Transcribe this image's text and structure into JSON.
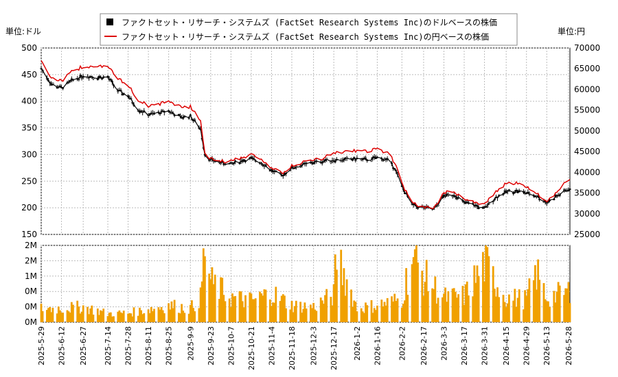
{
  "chart_data": {
    "type": "line",
    "legend": {
      "placement": "top-center",
      "items": [
        {
          "name": "ファクトセット・リサーチ・システムズ (FactSet Research Systems Inc)のドルベースの株価",
          "color": "#000000",
          "marker": "square"
        },
        {
          "name": "ファクトセット・リサーチ・システムズ (FactSet Research Systems Inc)の円ベースの株価",
          "color": "#dd0000",
          "marker": "line"
        }
      ]
    },
    "price_panel": {
      "left_axis_label": "単位:ドル",
      "right_axis_label": "単位:円",
      "left_ylim": [
        150,
        500
      ],
      "left_ticks": [
        "150",
        "200",
        "250",
        "300",
        "350",
        "400",
        "450",
        "500"
      ],
      "right_ylim": [
        25000,
        70000
      ],
      "right_ticks": [
        "25000",
        "30000",
        "35000",
        "40000",
        "45000",
        "50000",
        "55000",
        "60000",
        "65000",
        "70000"
      ],
      "grid": true
    },
    "volume_panel": {
      "ylim": [
        0,
        2.5
      ],
      "tick_values": [
        0,
        0.5,
        1,
        1.5,
        2,
        2.5
      ],
      "tick_labels": [
        "0M",
        "0M",
        "0M",
        "1M",
        "2M",
        "2M"
      ],
      "bar_color": "#f0a000",
      "grid": true
    },
    "x_axis": {
      "start": "2025-05-29",
      "end": "2026-05-29",
      "tick_labels": [
        "2025-5-29",
        "2025-6-12",
        "2025-6-27",
        "2025-7-14",
        "2025-7-28",
        "2025-8-11",
        "2025-8-25",
        "2025-9-9",
        "2025-9-23",
        "2025-10-7",
        "2025-10-21",
        "2025-11-4",
        "2025-11-18",
        "2025-12-3",
        "2025-12-17",
        "2026-1-2",
        "2026-1-16",
        "2026-2-2",
        "2026-2-17",
        "2026-3-3",
        "2026-3-17",
        "2026-3-31",
        "2026-4-15",
        "2026-4-29",
        "2026-5-13",
        "2026-5-28"
      ]
    },
    "usd_series": {
      "name": "ドルベース",
      "dates": [
        "2025-05-29",
        "2025-06-05",
        "2025-06-12",
        "2025-06-20",
        "2025-06-27",
        "2025-07-07",
        "2025-07-14",
        "2025-07-21",
        "2025-07-28",
        "2025-08-04",
        "2025-08-11",
        "2025-08-18",
        "2025-08-25",
        "2025-09-02",
        "2025-09-09",
        "2025-09-16",
        "2025-09-19",
        "2025-09-23",
        "2025-09-30",
        "2025-10-07",
        "2025-10-14",
        "2025-10-21",
        "2025-10-28",
        "2025-11-04",
        "2025-11-11",
        "2025-11-18",
        "2025-11-25",
        "2025-12-03",
        "2025-12-10",
        "2025-12-17",
        "2025-12-24",
        "2026-01-02",
        "2026-01-09",
        "2026-01-16",
        "2026-01-23",
        "2026-01-28",
        "2026-02-02",
        "2026-02-09",
        "2026-02-17",
        "2026-02-24",
        "2026-03-03",
        "2026-03-10",
        "2026-03-17",
        "2026-03-24",
        "2026-03-31",
        "2026-04-07",
        "2026-04-15",
        "2026-04-22",
        "2026-04-29",
        "2026-05-06",
        "2026-05-13",
        "2026-05-20",
        "2026-05-28"
      ],
      "values": [
        462,
        432,
        425,
        440,
        448,
        445,
        445,
        420,
        410,
        385,
        375,
        378,
        382,
        370,
        372,
        348,
        300,
        290,
        285,
        282,
        288,
        292,
        285,
        270,
        260,
        275,
        280,
        285,
        288,
        290,
        290,
        292,
        290,
        294,
        290,
        275,
        240,
        205,
        200,
        197,
        222,
        225,
        210,
        205,
        198,
        218,
        230,
        232,
        228,
        222,
        210,
        222,
        235
      ]
    },
    "jpy_series": {
      "name": "円ベース",
      "dates": [
        "2025-05-29",
        "2025-06-05",
        "2025-06-12",
        "2025-06-20",
        "2025-06-27",
        "2025-07-07",
        "2025-07-14",
        "2025-07-21",
        "2025-07-28",
        "2025-08-04",
        "2025-08-11",
        "2025-08-18",
        "2025-08-25",
        "2025-09-02",
        "2025-09-09",
        "2025-09-16",
        "2025-09-19",
        "2025-09-23",
        "2025-09-30",
        "2025-10-07",
        "2025-10-14",
        "2025-10-21",
        "2025-10-28",
        "2025-11-04",
        "2025-11-11",
        "2025-11-18",
        "2025-11-25",
        "2025-12-03",
        "2025-12-10",
        "2025-12-17",
        "2025-12-24",
        "2026-01-02",
        "2026-01-09",
        "2026-01-16",
        "2026-01-23",
        "2026-01-28",
        "2026-02-02",
        "2026-02-09",
        "2026-02-17",
        "2026-02-24",
        "2026-03-03",
        "2026-03-10",
        "2026-03-17",
        "2026-03-24",
        "2026-03-31",
        "2026-04-07",
        "2026-04-15",
        "2026-04-22",
        "2026-04-29",
        "2026-05-06",
        "2026-05-13",
        "2026-05-20",
        "2026-05-28"
      ],
      "values": [
        67000,
        62800,
        62000,
        64500,
        65500,
        65800,
        65500,
        62500,
        61000,
        57500,
        56000,
        56400,
        57200,
        55800,
        55800,
        52500,
        44800,
        43200,
        42600,
        42600,
        43600,
        44200,
        43300,
        41000,
        39700,
        41500,
        42300,
        43000,
        43400,
        44900,
        44800,
        45200,
        45000,
        45700,
        44600,
        42500,
        37300,
        32500,
        31500,
        31200,
        35000,
        35500,
        33300,
        32800,
        32100,
        35200,
        37200,
        37500,
        36400,
        35000,
        33000,
        35200,
        38300
      ]
    },
    "volume_series": {
      "name": "出来高",
      "unit": "M",
      "dates": [
        "2025-05-29",
        "2025-06-12",
        "2025-06-27",
        "2025-07-14",
        "2025-07-28",
        "2025-08-11",
        "2025-08-25",
        "2025-09-09",
        "2025-09-16",
        "2025-09-19",
        "2025-09-23",
        "2025-10-07",
        "2025-10-21",
        "2025-11-04",
        "2025-11-18",
        "2025-12-03",
        "2025-12-17",
        "2025-12-19",
        "2026-01-02",
        "2026-01-16",
        "2026-02-02",
        "2026-02-09",
        "2026-02-17",
        "2026-03-03",
        "2026-03-17",
        "2026-03-31",
        "2026-04-15",
        "2026-04-29",
        "2026-05-06",
        "2026-05-13",
        "2026-05-28"
      ],
      "values": [
        0.45,
        0.45,
        0.5,
        0.28,
        0.3,
        0.42,
        0.55,
        0.45,
        0.8,
        2.45,
        1.3,
        0.8,
        0.7,
        0.95,
        0.55,
        0.5,
        0.9,
        2.25,
        0.45,
        0.55,
        0.75,
        2.15,
        1.5,
        0.8,
        0.85,
        1.9,
        0.8,
        0.75,
        1.6,
        0.8,
        1.0
      ]
    }
  }
}
